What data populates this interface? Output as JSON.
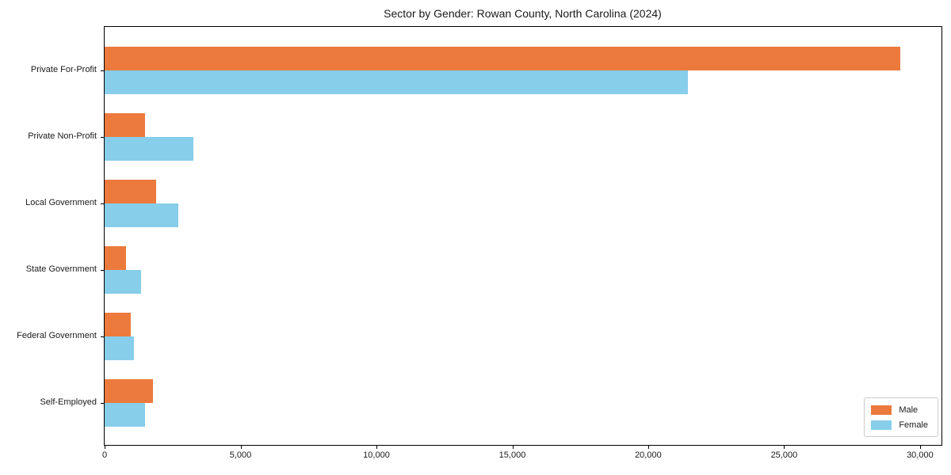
{
  "title": "Sector by Gender: Rowan County, North Carolina (2024)",
  "chart_data": {
    "type": "bar",
    "orientation": "horizontal",
    "title": "Sector by Gender: Rowan County, North Carolina (2024)",
    "categories": [
      "Private For-Profit",
      "Private Non-Profit",
      "Local Government",
      "State Government",
      "Federal Government",
      "Self-Employed"
    ],
    "series": [
      {
        "name": "Male",
        "color": "#EC7A3C",
        "values": [
          29270,
          1500,
          1900,
          800,
          960,
          1770
        ]
      },
      {
        "name": "Female",
        "color": "#87CEEB",
        "values": [
          21450,
          3250,
          2700,
          1350,
          1070,
          1480
        ]
      }
    ],
    "xlabel": "",
    "ylabel": "",
    "xlim": [
      0,
      30790
    ],
    "xticks": [
      0,
      5000,
      10000,
      15000,
      20000,
      25000,
      30000
    ],
    "xtick_labels": [
      "0",
      "5,000",
      "10,000",
      "15,000",
      "20,000",
      "25,000",
      "30,000"
    ],
    "grid": false,
    "legend": {
      "position": "lower right",
      "entries": [
        "Male",
        "Female"
      ]
    }
  }
}
